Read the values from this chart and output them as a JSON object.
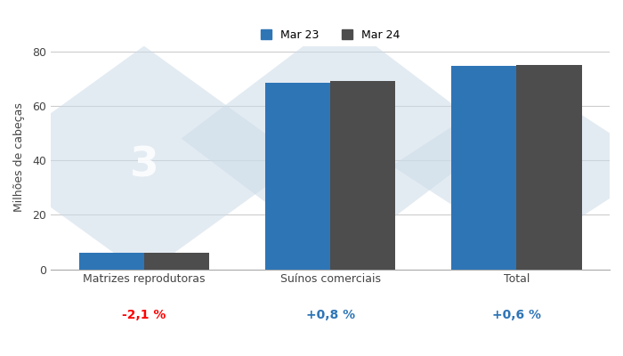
{
  "categories": [
    "Matrizes reprodutoras",
    "Suínos comerciais",
    "Total"
  ],
  "mar23_values": [
    6.1,
    68.5,
    74.6
  ],
  "mar24_values": [
    5.97,
    69.05,
    75.02
  ],
  "pct_changes": [
    "-2,1 %",
    "+0,8 %",
    "+0,6 %"
  ],
  "pct_colors": [
    "red",
    "#2e75b6",
    "#2e75b6"
  ],
  "bar_color_mar23": "#2e75b6",
  "bar_color_mar24": "#4d4d4d",
  "ylabel": "Milhões de cabeças",
  "ylim": [
    0,
    82
  ],
  "yticks": [
    0,
    20,
    40,
    60,
    80
  ],
  "legend_labels": [
    "Mar 23",
    "Mar 24"
  ],
  "bar_width": 0.35,
  "background_color": "#ffffff",
  "grid_color": "#cccccc",
  "axis_fontsize": 9,
  "tick_fontsize": 9,
  "pct_fontsize": 10,
  "diamond_color": "#ccdce8",
  "diamond_alpha": 0.55,
  "number_color": "#ffffff",
  "number_alpha": 0.85
}
